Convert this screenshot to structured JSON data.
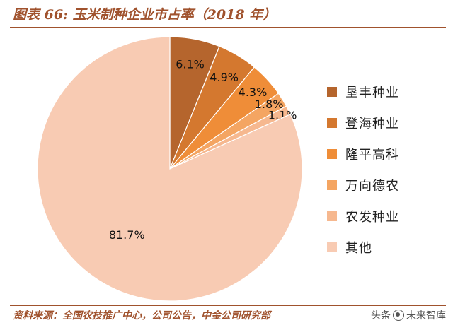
{
  "title": "图表 66:  玉米制种企业市占率（2018 年）",
  "source": "资料来源：全国农技推广中心，公司公告，中金公司研究部",
  "watermark": {
    "prefix": "头条",
    "handle": "未来智库",
    "icon": "camera-logo-icon"
  },
  "chart_data": {
    "type": "pie",
    "title": "玉米制种企业市占率（2018 年）",
    "unit": "%",
    "legend_position": "right",
    "start_angle": "12 o'clock, clockwise",
    "slices": [
      {
        "label": "垦丰种业",
        "value": 6.1,
        "value_label": "6.1%",
        "color": "#b5652d"
      },
      {
        "label": "登海种业",
        "value": 4.9,
        "value_label": "4.9%",
        "color": "#d4782f"
      },
      {
        "label": "隆平高科",
        "value": 4.3,
        "value_label": "4.3%",
        "color": "#ef8d38"
      },
      {
        "label": "万向德农",
        "value": 1.8,
        "value_label": "1.8%",
        "color": "#f4a562"
      },
      {
        "label": "农发种业",
        "value": 1.1,
        "value_label": "1.1%",
        "color": "#f6b88f"
      },
      {
        "label": "其他",
        "value": 81.7,
        "value_label": "81.7%",
        "color": "#f8cbb3"
      }
    ]
  }
}
